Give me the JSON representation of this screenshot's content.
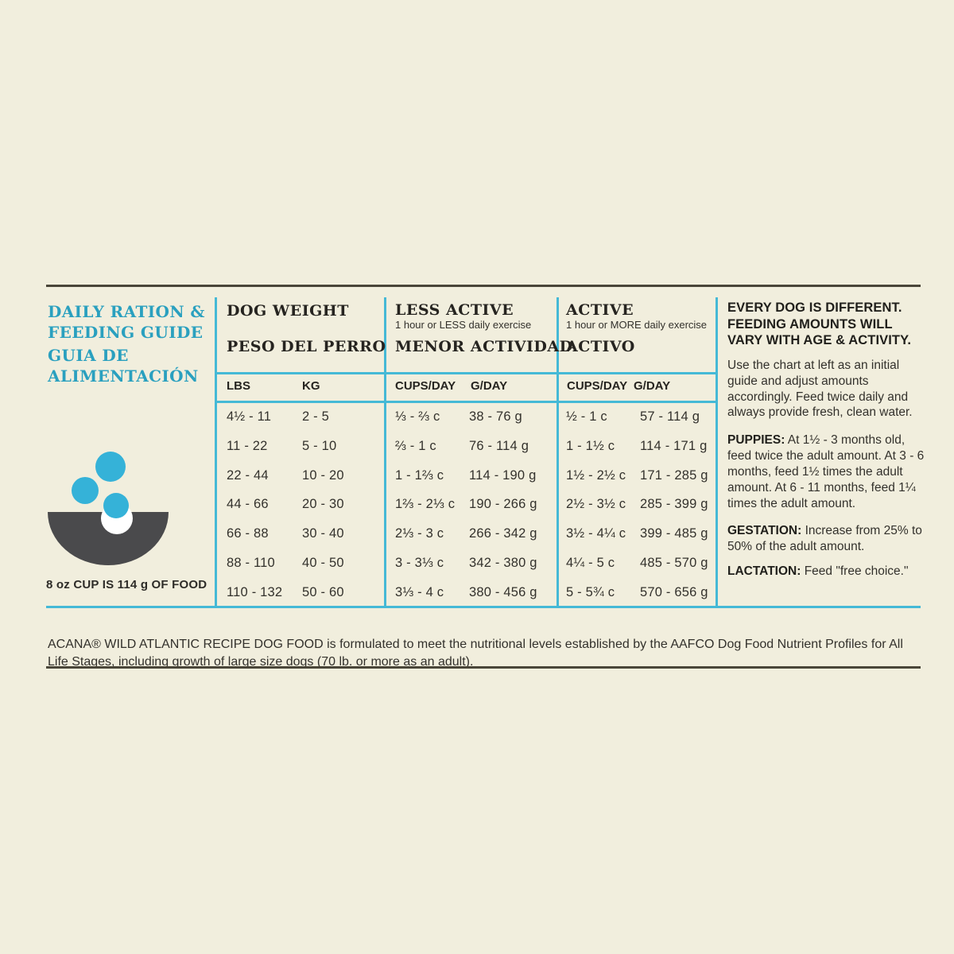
{
  "page": {
    "background": "#f1eedd",
    "accent_cyan": "#2aa0bf",
    "line_cyan": "#45b9d6",
    "bowl_gray": "#4a4a4c",
    "kibble_blue": "#35b2d8"
  },
  "left": {
    "title_en": "DAILY RATION & FEEDING GUIDE",
    "title_es": "GUIA DE ALIMENTACIÓN",
    "icon": "bowl-with-kibble",
    "cup_note": "8 oz CUP IS 114 g OF FOOD"
  },
  "table": {
    "dog_weight_en": "DOG WEIGHT",
    "dog_weight_es": "PESO DEL PERRO",
    "less_active_en": "LESS ACTIVE",
    "less_active_note": "1 hour or LESS daily exercise",
    "less_active_es": "MENOR ACTIVIDAD",
    "active_en": "ACTIVE",
    "active_note": "1 hour or MORE daily exercise",
    "active_es": "ACTIVO",
    "subheaders": [
      "LBS",
      "KG",
      "CUPS/DAY",
      "G/DAY",
      "CUPS/DAY",
      "G/DAY"
    ],
    "rows": [
      [
        "4½ - 11",
        "2 - 5",
        "⅓ - ⅔ c",
        "38 - 76 g",
        "½ - 1 c",
        "57 - 114 g"
      ],
      [
        "11 - 22",
        "5 - 10",
        "⅔ - 1 c",
        "76 - 114 g",
        "1 - 1½ c",
        "114 - 171 g"
      ],
      [
        "22 - 44",
        "10 - 20",
        "1 - 1⅔ c",
        "114 - 190 g",
        "1½ - 2½ c",
        "171 - 285 g"
      ],
      [
        "44 - 66",
        "20 - 30",
        "1⅔ - 2⅓ c",
        "190 - 266 g",
        "2½ - 3½ c",
        "285 - 399 g"
      ],
      [
        "66 - 88",
        "30 - 40",
        "2⅓ - 3 c",
        "266 - 342 g",
        "3½ - 4¼ c",
        "399 - 485 g"
      ],
      [
        "88 - 110",
        "40 - 50",
        "3 - 3⅓ c",
        "342 - 380 g",
        "4¼ - 5 c",
        "485 - 570 g"
      ],
      [
        "110 - 132",
        "50 - 60",
        "3⅓ - 4 c",
        "380 - 456 g",
        "5 - 5¾ c",
        "570 - 656 g"
      ]
    ]
  },
  "right": {
    "headline_lines": [
      "EVERY DOG IS DIFFERENT.",
      "FEEDING AMOUNTS WILL",
      "VARY WITH AGE & ACTIVITY."
    ],
    "intro": "Use the chart at left as an initial guide and adjust amounts accordingly. Feed twice daily and always provide fresh, clean water.",
    "puppies_label": "PUPPIES:",
    "puppies_text": " At 1½ - 3 months old, feed twice the adult amount. At 3 - 6 months, feed 1½ times the adult amount. At 6 - 11 months, feed 1¼ times the adult amount.",
    "gestation_label": "GESTATION:",
    "gestation_text": " Increase from 25% to 50% of the adult amount.",
    "lactation_label": "LACTATION:",
    "lactation_text": " Feed \"free choice.\""
  },
  "footer": {
    "aafco": "ACANA® WILD ATLANTIC RECIPE DOG FOOD is formulated to meet the nutritional levels established by the AAFCO Dog Food Nutrient Profiles for All Life Stages, including growth of large size dogs (70 lb. or more as an adult)."
  }
}
